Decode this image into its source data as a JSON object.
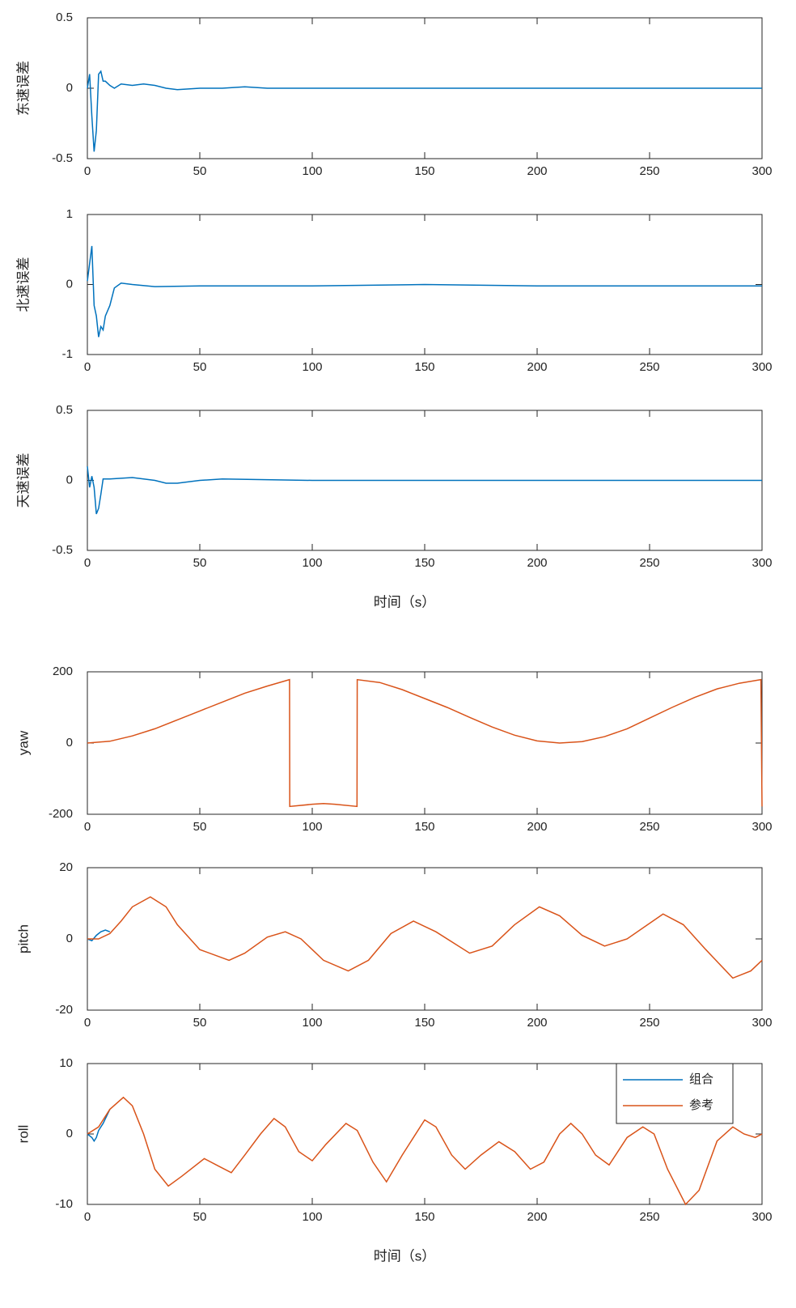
{
  "chart_data": [
    {
      "type": "line",
      "ylabel": "东速误差",
      "xlim": [
        0,
        300
      ],
      "ylim": [
        -0.5,
        0.5
      ],
      "xticks": [
        0,
        50,
        100,
        150,
        200,
        250,
        300
      ],
      "yticks": [
        -0.5,
        0,
        0.5
      ],
      "series": [
        {
          "color": "#0072bd",
          "x": [
            0,
            1,
            2,
            3,
            4,
            5,
            6,
            7,
            8,
            10,
            12,
            15,
            20,
            25,
            30,
            35,
            40,
            50,
            60,
            70,
            80,
            100,
            150,
            200,
            250,
            300
          ],
          "values": [
            0,
            0.1,
            -0.2,
            -0.45,
            -0.3,
            0.1,
            0.12,
            0.05,
            0.05,
            0.02,
            0,
            0.03,
            0.02,
            0.03,
            0.02,
            0,
            -0.01,
            0,
            0,
            0.01,
            0,
            0,
            0,
            0,
            0,
            0
          ]
        }
      ]
    },
    {
      "type": "line",
      "ylabel": "北速误差",
      "xlim": [
        0,
        300
      ],
      "ylim": [
        -1,
        1
      ],
      "xticks": [
        0,
        50,
        100,
        150,
        200,
        250,
        300
      ],
      "yticks": [
        -1,
        0,
        1
      ],
      "series": [
        {
          "color": "#0072bd",
          "x": [
            0,
            1,
            2,
            3,
            4,
            5,
            6,
            7,
            8,
            10,
            12,
            15,
            20,
            30,
            50,
            100,
            150,
            200,
            300
          ],
          "values": [
            0.05,
            0.3,
            0.55,
            -0.3,
            -0.45,
            -0.75,
            -0.6,
            -0.65,
            -0.45,
            -0.3,
            -0.05,
            0.02,
            0,
            -0.03,
            -0.02,
            -0.02,
            0,
            -0.02,
            -0.02
          ]
        }
      ]
    },
    {
      "type": "line",
      "ylabel": "天速误差",
      "xlabel": "时间（s）",
      "xlim": [
        0,
        300
      ],
      "ylim": [
        -0.5,
        0.5
      ],
      "xticks": [
        0,
        50,
        100,
        150,
        200,
        250,
        300
      ],
      "yticks": [
        -0.5,
        0,
        0.5
      ],
      "series": [
        {
          "color": "#0072bd",
          "x": [
            0,
            1,
            2,
            3,
            4,
            5,
            6,
            7,
            10,
            20,
            30,
            35,
            40,
            50,
            60,
            100,
            300
          ],
          "values": [
            0.1,
            -0.05,
            0.03,
            -0.05,
            -0.24,
            -0.2,
            -0.1,
            0.01,
            0.01,
            0.02,
            0,
            -0.02,
            -0.02,
            0,
            0.01,
            0,
            0
          ]
        }
      ]
    },
    {
      "type": "line",
      "ylabel": "yaw",
      "xlim": [
        0,
        300
      ],
      "ylim": [
        -200,
        200
      ],
      "xticks": [
        0,
        50,
        100,
        150,
        200,
        250,
        300
      ],
      "yticks": [
        -200,
        0,
        200
      ],
      "series": [
        {
          "color": "#d95319",
          "x": [
            0,
            10,
            20,
            30,
            40,
            50,
            60,
            70,
            80,
            89.9,
            90,
            100,
            105,
            110,
            119.9,
            120,
            130,
            140,
            150,
            160,
            170,
            180,
            190,
            200,
            210,
            220,
            230,
            240,
            250,
            260,
            270,
            280,
            290,
            299.5,
            300
          ],
          "values": [
            0,
            5,
            20,
            40,
            65,
            90,
            115,
            140,
            160,
            178,
            -178,
            -172,
            -170,
            -172,
            -178,
            178,
            170,
            150,
            125,
            100,
            72,
            45,
            22,
            6,
            0,
            4,
            18,
            40,
            70,
            100,
            128,
            152,
            168,
            178,
            -178
          ]
        }
      ]
    },
    {
      "type": "line",
      "ylabel": "pitch",
      "xlim": [
        0,
        300
      ],
      "ylim": [
        -20,
        20
      ],
      "xticks": [
        0,
        50,
        100,
        150,
        200,
        250,
        300
      ],
      "yticks": [
        -20,
        0,
        20
      ],
      "series": [
        {
          "color": "#0072bd",
          "x": [
            0,
            2,
            4,
            6,
            8,
            10
          ],
          "values": [
            0,
            -0.5,
            1,
            2,
            2.5,
            2
          ]
        },
        {
          "color": "#d95319",
          "x": [
            0,
            5,
            10,
            15,
            20,
            28,
            35,
            40,
            50,
            63,
            70,
            80,
            88,
            95,
            105,
            116,
            125,
            135,
            145,
            155,
            170,
            180,
            190,
            201,
            210,
            220,
            230,
            240,
            256,
            265,
            275,
            287,
            295,
            300
          ],
          "values": [
            0,
            0,
            1.5,
            5,
            9,
            11.8,
            9,
            4,
            -3,
            -6,
            -4,
            0.5,
            2,
            0,
            -6,
            -9,
            -6,
            1.5,
            5,
            2,
            -4,
            -2,
            4,
            9,
            6.5,
            1,
            -2,
            0,
            7,
            4,
            -3,
            -11,
            -9,
            -6
          ]
        }
      ]
    },
    {
      "type": "line",
      "ylabel": "roll",
      "xlabel": "时间（s）",
      "xlim": [
        0,
        300
      ],
      "ylim": [
        -10,
        10
      ],
      "xticks": [
        0,
        50,
        100,
        150,
        200,
        250,
        300
      ],
      "yticks": [
        -10,
        0,
        10
      ],
      "legend": "upper right",
      "series": [
        {
          "name": "组合",
          "color": "#0072bd",
          "x": [
            0,
            2,
            3,
            4,
            5,
            7,
            10
          ],
          "values": [
            0,
            -0.5,
            -1,
            -0.5,
            0.5,
            1.5,
            3.5
          ]
        },
        {
          "name": "参考",
          "color": "#d95319",
          "x": [
            0,
            5,
            10,
            16,
            20,
            25,
            30,
            36,
            42,
            52,
            58,
            64,
            70,
            77,
            83,
            88,
            94,
            100,
            106,
            115,
            120,
            127,
            133,
            140,
            150,
            155,
            162,
            168,
            175,
            183,
            190,
            197,
            203,
            210,
            215,
            220,
            226,
            232,
            240,
            247,
            252,
            258,
            266,
            272,
            280,
            287,
            292,
            297,
            300
          ],
          "values": [
            0,
            1,
            3.5,
            5.2,
            4,
            0,
            -5,
            -7.4,
            -6,
            -3.5,
            -4.5,
            -5.5,
            -3,
            0,
            2.2,
            1,
            -2.5,
            -3.8,
            -1.5,
            1.5,
            0.5,
            -4,
            -6.8,
            -3,
            2,
            1,
            -3,
            -5,
            -3,
            -1.1,
            -2.5,
            -5,
            -4,
            0,
            1.5,
            0,
            -3,
            -4.4,
            -0.5,
            1,
            0,
            -5,
            -10,
            -8,
            -1,
            1,
            0,
            -0.5,
            0
          ]
        }
      ]
    }
  ]
}
